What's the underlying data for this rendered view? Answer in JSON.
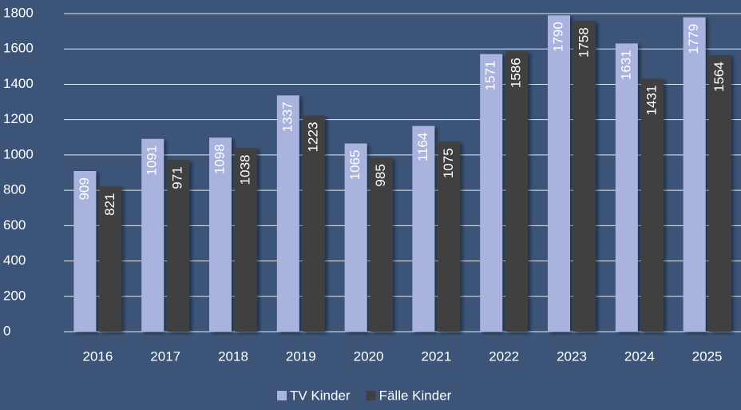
{
  "chart_data": {
    "type": "bar",
    "categories": [
      "2016",
      "2017",
      "2018",
      "2019",
      "2020",
      "2021",
      "2022",
      "2023",
      "2024",
      "2025"
    ],
    "series": [
      {
        "name": "TV Kinder",
        "color": "#a9b3de",
        "values": [
          909,
          1091,
          1098,
          1337,
          1065,
          1164,
          1571,
          1790,
          1631,
          1779
        ]
      },
      {
        "name": "Fälle Kinder",
        "color": "#404040",
        "values": [
          821,
          971,
          1038,
          1223,
          985,
          1075,
          1586,
          1758,
          1431,
          1564
        ]
      }
    ],
    "ylim": [
      0,
      1800
    ],
    "yticks": [
      0,
      200,
      400,
      600,
      800,
      1000,
      1200,
      1400,
      1600,
      1800
    ],
    "grid": true,
    "legend": "bottom"
  }
}
